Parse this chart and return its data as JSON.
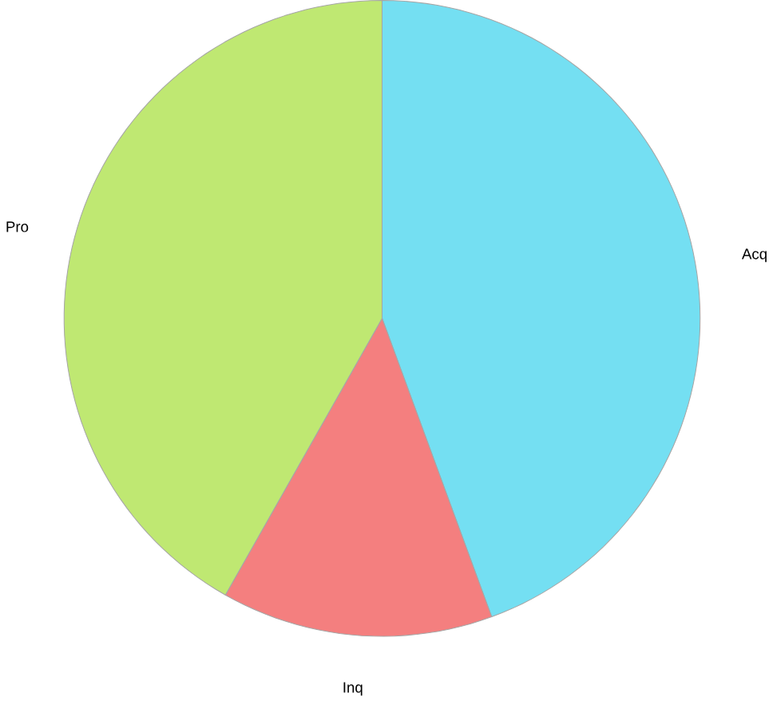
{
  "chart_data": {
    "type": "pie",
    "categories": [
      "Acq",
      "Inq",
      "Pro"
    ],
    "values": [
      44.4,
      13.8,
      41.8
    ],
    "colors": [
      "#74dff2",
      "#f47f7f",
      "#bfe872"
    ]
  }
}
